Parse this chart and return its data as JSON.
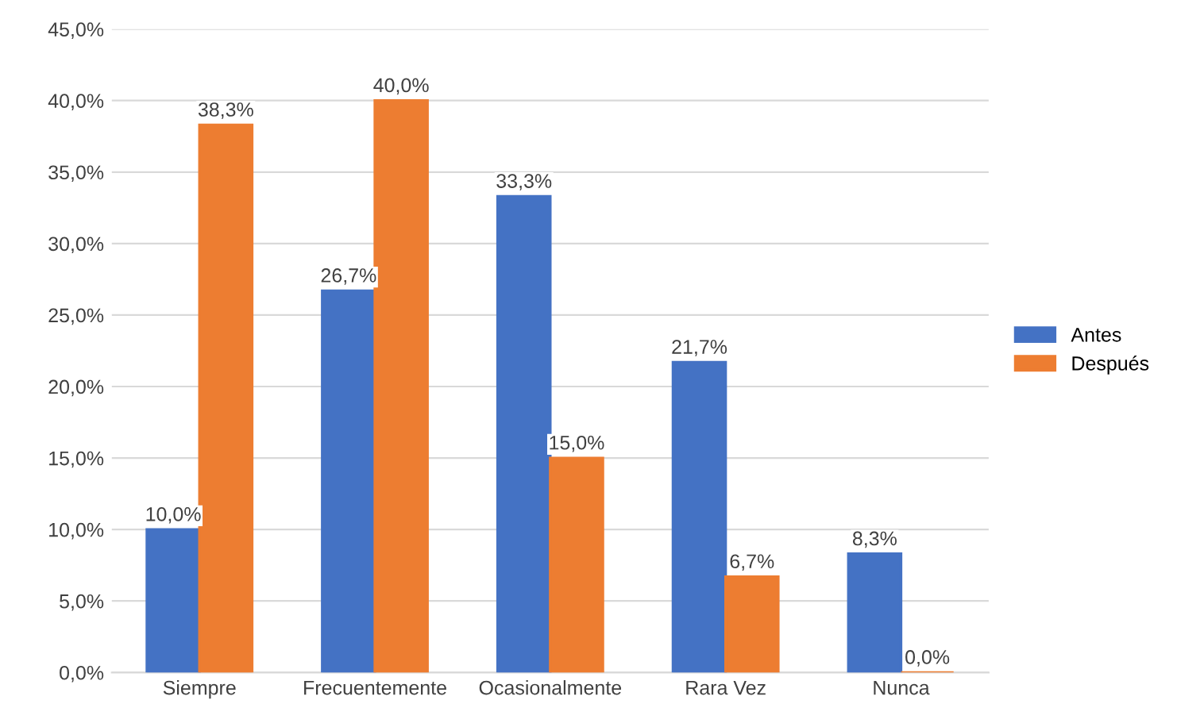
{
  "chart_data": {
    "type": "bar",
    "categories": [
      "Siempre",
      "Frecuentemente",
      "Ocasionalmente",
      "Rara Vez",
      "Nunca"
    ],
    "series": [
      {
        "name": "Antes",
        "color": "#4472c4",
        "values": [
          10.0,
          26.7,
          33.3,
          21.7,
          8.3
        ],
        "value_labels": [
          "10,0%",
          "26,7%",
          "33,3%",
          "21,7%",
          "8,3%"
        ]
      },
      {
        "name": "Después",
        "color": "#ed7d31",
        "values": [
          38.3,
          40.0,
          15.0,
          6.7,
          0.0
        ],
        "value_labels": [
          "38,3%",
          "40,0%",
          "15,0%",
          "6,7%",
          "0,0%"
        ]
      }
    ],
    "ylim": [
      0,
      45
    ],
    "yticks": [
      {
        "value": 0,
        "label": "0,0%"
      },
      {
        "value": 5,
        "label": "5,0%"
      },
      {
        "value": 10,
        "label": "10,0%"
      },
      {
        "value": 15,
        "label": "15,0%"
      },
      {
        "value": 20,
        "label": "20,0%"
      },
      {
        "value": 25,
        "label": "25,0%"
      },
      {
        "value": 30,
        "label": "30,0%"
      },
      {
        "value": 35,
        "label": "35,0%"
      },
      {
        "value": 40,
        "label": "40,0%"
      },
      {
        "value": 45,
        "label": "45,0%"
      }
    ],
    "grid": "y",
    "legend": "right"
  }
}
